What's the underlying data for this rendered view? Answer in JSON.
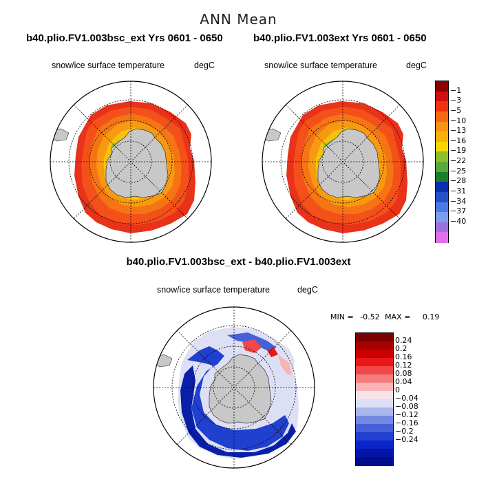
{
  "main_title": "ANN Mean",
  "panels": [
    {
      "case": "b40.plio.FV1.003bsc_ext  Yrs 0601 - 0650",
      "variable": "snow/ice surface temperature",
      "units": "degC"
    },
    {
      "case": "b40.plio.FV1.003ext  Yrs 0601 - 0650",
      "variable": "snow/ice surface temperature",
      "units": "degC"
    }
  ],
  "difference_panel": {
    "title": "b40.plio.FV1.003bsc_ext - b40.plio.FV1.003ext",
    "variable": "snow/ice surface temperature",
    "units": "degC",
    "min_label": "MIN =",
    "min_value": "-0.52",
    "max_label": "MAX =",
    "max_value": "0.19"
  },
  "colorbar_top": {
    "labels": [
      "-1",
      "-3",
      "-5",
      "-10",
      "-13",
      "-16",
      "-19",
      "-22",
      "-25",
      "-28",
      "-31",
      "-34",
      "-37",
      "-40"
    ],
    "colors": [
      "#8b0000",
      "#d01010",
      "#ee3311",
      "#f56a10",
      "#f79213",
      "#f8b00c",
      "#f5d800",
      "#8fbf2a",
      "#5ba83a",
      "#1b7f2a",
      "#0a2fb0",
      "#2452cc",
      "#4d7ae2",
      "#7b9cf0",
      "#9b72dc",
      "#e070e8"
    ]
  },
  "colorbar_diff": {
    "labels": [
      "0.24",
      "0.2",
      "0.16",
      "0.12",
      "0.08",
      "0.04",
      "0",
      "-0.04",
      "-0.08",
      "-0.12",
      "-0.16",
      "-0.2",
      "-0.24"
    ],
    "colors": [
      "#7a0000",
      "#a80000",
      "#cc0000",
      "#e81818",
      "#f04848",
      "#f47c7c",
      "#f8b4b4",
      "#f6e4ea",
      "#dde0f4",
      "#a9b6ec",
      "#7488e2",
      "#4560d8",
      "#2040d0",
      "#0a24c8",
      "#0515a8",
      "#000c8a"
    ]
  }
}
